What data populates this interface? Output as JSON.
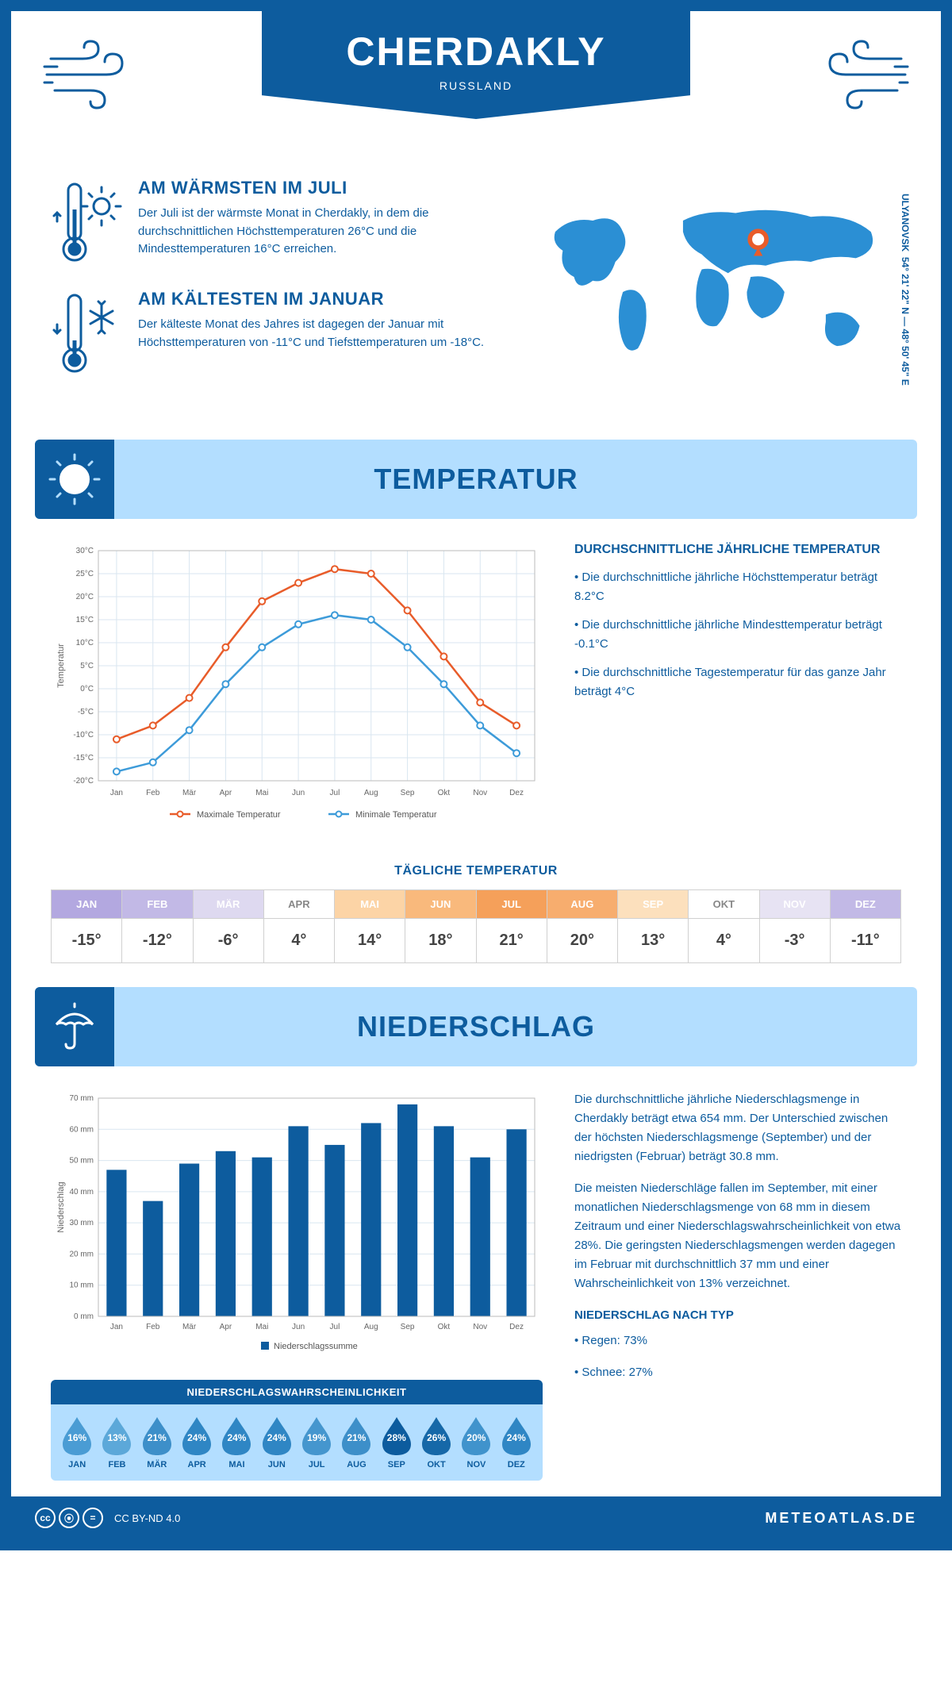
{
  "colors": {
    "primary": "#0d5c9e",
    "lightblue": "#b3deff",
    "accent_orange": "#e85c2a",
    "accent_blue": "#3d9bd9",
    "grid": "#d9e6f0"
  },
  "header": {
    "city": "CHERDAKLY",
    "country": "RUSSLAND",
    "coords": "54° 21' 22\" N — 48° 50' 45\" E",
    "region": "ULYANOVSK"
  },
  "facts": {
    "warm": {
      "title": "AM WÄRMSTEN IM JULI",
      "text": "Der Juli ist der wärmste Monat in Cherdakly, in dem die durchschnittlichen Höchsttemperaturen 26°C und die Mindesttemperaturen 16°C erreichen."
    },
    "cold": {
      "title": "AM KÄLTESTEN IM JANUAR",
      "text": "Der kälteste Monat des Jahres ist dagegen der Januar mit Höchsttemperaturen von -11°C und Tiefsttemperaturen um -18°C."
    }
  },
  "temperature_section": {
    "title": "TEMPERATUR",
    "side_title": "DURCHSCHNITTLICHE JÄHRLICHE TEMPERATUR",
    "side_points": [
      "• Die durchschnittliche jährliche Höchsttemperatur beträgt 8.2°C",
      "• Die durchschnittliche jährliche Mindesttemperatur beträgt -0.1°C",
      "• Die durchschnittliche Tagestemperatur für das ganze Jahr beträgt 4°C"
    ],
    "chart": {
      "type": "line",
      "months": [
        "Jan",
        "Feb",
        "Mär",
        "Apr",
        "Mai",
        "Jun",
        "Jul",
        "Aug",
        "Sep",
        "Okt",
        "Nov",
        "Dez"
      ],
      "ylabel": "Temperatur",
      "ylim": [
        -20,
        30
      ],
      "ytick_step": 5,
      "ytick_labels": [
        "-20°C",
        "-15°C",
        "-10°C",
        "-5°C",
        "0°C",
        "5°C",
        "10°C",
        "15°C",
        "20°C",
        "25°C",
        "30°C"
      ],
      "series": [
        {
          "name": "Maximale Temperatur",
          "color": "#e85c2a",
          "values": [
            -11,
            -8,
            -2,
            9,
            19,
            23,
            26,
            25,
            17,
            7,
            -3,
            -8
          ]
        },
        {
          "name": "Minimale Temperatur",
          "color": "#3d9bd9",
          "values": [
            -18,
            -16,
            -9,
            1,
            9,
            14,
            16,
            15,
            9,
            1,
            -8,
            -14
          ]
        }
      ],
      "marker_size": 4,
      "line_width": 2.5,
      "grid_color": "#d9e6f0",
      "background": "#ffffff",
      "tick_fontsize": 10,
      "label_fontsize": 11
    }
  },
  "daily_temp": {
    "title": "TÄGLICHE TEMPERATUR",
    "months": [
      "JAN",
      "FEB",
      "MÄR",
      "APR",
      "MAI",
      "JUN",
      "JUL",
      "AUG",
      "SEP",
      "OKT",
      "NOV",
      "DEZ"
    ],
    "values": [
      "-15°",
      "-12°",
      "-6°",
      "4°",
      "14°",
      "18°",
      "21°",
      "20°",
      "13°",
      "4°",
      "-3°",
      "-11°"
    ],
    "label_colors": [
      "#9a8ed9",
      "#a89cdd",
      "#c7bfe8",
      "#888888",
      "#f7b87a",
      "#f5a05a",
      "#f08844",
      "#f29a58",
      "#f7c793",
      "#888888",
      "#d2cceb",
      "#a89cdd"
    ],
    "label_bg": [
      "#b3a8e0",
      "#c2b9e6",
      "#ded9f0",
      "#ffffff",
      "#fcd4a6",
      "#f9b97c",
      "#f5a05a",
      "#f7ad6e",
      "#fce0bd",
      "#ffffff",
      "#e7e3f3",
      "#c2b9e6"
    ]
  },
  "precipitation_section": {
    "title": "NIEDERSCHLAG",
    "chart": {
      "type": "bar",
      "months": [
        "Jan",
        "Feb",
        "Mär",
        "Apr",
        "Mai",
        "Jun",
        "Jul",
        "Aug",
        "Sep",
        "Okt",
        "Nov",
        "Dez"
      ],
      "values": [
        47,
        37,
        49,
        53,
        51,
        61,
        55,
        62,
        68,
        61,
        51,
        60
      ],
      "ylabel": "Niederschlag",
      "ylim": [
        0,
        70
      ],
      "ytick_step": 10,
      "ytick_labels": [
        "0 mm",
        "10 mm",
        "20 mm",
        "30 mm",
        "40 mm",
        "50 mm",
        "60 mm",
        "70 mm"
      ],
      "bar_color": "#0d5c9e",
      "bar_width": 0.55,
      "grid_color": "#d9e6f0",
      "legend": "Niederschlagssumme",
      "tick_fontsize": 10,
      "label_fontsize": 11
    },
    "text_p1": "Die durchschnittliche jährliche Niederschlagsmenge in Cherdakly beträgt etwa 654 mm. Der Unterschied zwischen der höchsten Niederschlagsmenge (September) und der niedrigsten (Februar) beträgt 30.8 mm.",
    "text_p2": "Die meisten Niederschläge fallen im September, mit einer monatlichen Niederschlagsmenge von 68 mm in diesem Zeitraum und einer Niederschlagswahrscheinlichkeit von etwa 28%. Die geringsten Niederschlagsmengen werden dagegen im Februar mit durchschnittlich 37 mm und einer Wahrscheinlichkeit von 13% verzeichnet.",
    "type_title": "NIEDERSCHLAG NACH TYP",
    "type_points": [
      "• Regen: 73%",
      "• Schnee: 27%"
    ]
  },
  "probability": {
    "title": "NIEDERSCHLAGSWAHRSCHEINLICHKEIT",
    "months": [
      "JAN",
      "FEB",
      "MÄR",
      "APR",
      "MAI",
      "JUN",
      "JUL",
      "AUG",
      "SEP",
      "OKT",
      "NOV",
      "DEZ"
    ],
    "values": [
      "16%",
      "13%",
      "21%",
      "24%",
      "24%",
      "24%",
      "19%",
      "21%",
      "28%",
      "26%",
      "20%",
      "24%"
    ],
    "drop_colors": [
      "#4a9cd4",
      "#5ca8d9",
      "#3d8fc9",
      "#2f86c4",
      "#2f86c4",
      "#2f86c4",
      "#4596ce",
      "#3d8fc9",
      "#0d5c9e",
      "#1668a8",
      "#4093cc",
      "#2f86c4"
    ]
  },
  "footer": {
    "license": "CC BY-ND 4.0",
    "site": "METEOATLAS.DE"
  }
}
